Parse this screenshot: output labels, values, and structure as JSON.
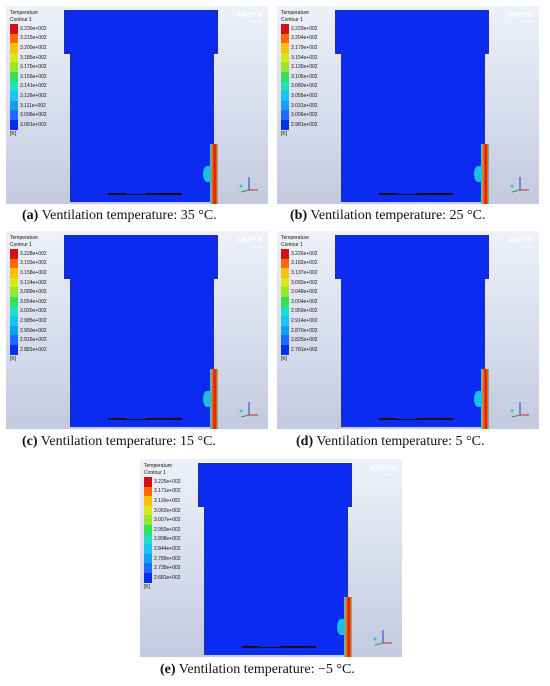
{
  "brand": {
    "name": "ANSYS",
    "version": "R17.0"
  },
  "legend_title": [
    "Temperature",
    "Contour 1"
  ],
  "unit": "[K]",
  "swatch_colors": [
    "#d51010",
    "#ff6a00",
    "#f5c40a",
    "#d7e81a",
    "#9ae62a",
    "#34e05a",
    "#1ee0c8",
    "#16c6f0",
    "#169ef5",
    "#1a6ef8",
    "#0b2cf0"
  ],
  "panels": [
    {
      "id": "a",
      "caption_letter": "(a)",
      "caption_text": " Ventilation temperature: 35 °C.",
      "legend_values": [
        "3.230e+002",
        "3.215e+002",
        "3.200e+002",
        "3.185e+002",
        "3.170e+002",
        "3.156e+002",
        "3.141e+002",
        "3.126e+002",
        "3.111e+002",
        "3.096e+002",
        "3.081e+002"
      ]
    },
    {
      "id": "b",
      "caption_letter": "(b)",
      "caption_text": " Ventilation temperature: 25 °C.",
      "legend_values": [
        "3.229e+002",
        "3.204e+002",
        "3.179e+002",
        "3.154e+002",
        "3.130e+002",
        "3.105e+002",
        "3.080e+002",
        "3.055e+002",
        "3.031e+002",
        "3.006e+002",
        "2.981e+002"
      ]
    },
    {
      "id": "c",
      "caption_letter": "(c)",
      "caption_text": " Ventilation temperature: 15 °C.",
      "legend_values": [
        "3.228e+002",
        "3.193e+002",
        "3.158e+002",
        "3.124e+002",
        "3.089e+002",
        "3.054e+002",
        "3.020e+002",
        "2.985e+002",
        "2.950e+002",
        "2.916e+002",
        "2.881e+002"
      ]
    },
    {
      "id": "d",
      "caption_letter": "(d)",
      "caption_text": " Ventilation temperature: 5 °C.",
      "legend_values": [
        "3.226e+002",
        "3.182e+002",
        "3.137e+002",
        "3.093e+002",
        "3.048e+002",
        "3.004e+002",
        "2.959e+002",
        "2.914e+002",
        "2.870e+002",
        "2.825e+002",
        "2.781e+002"
      ]
    },
    {
      "id": "e",
      "caption_letter": "(e)",
      "caption_text": " Ventilation temperature: −5 °C.",
      "legend_values": [
        "3.225e+002",
        "3.171e+002",
        "3.116e+002",
        "3.062e+002",
        "3.007e+002",
        "2.953e+002",
        "2.898e+002",
        "2.844e+002",
        "2.789e+002",
        "2.735e+002",
        "2.681e+002"
      ]
    }
  ]
}
